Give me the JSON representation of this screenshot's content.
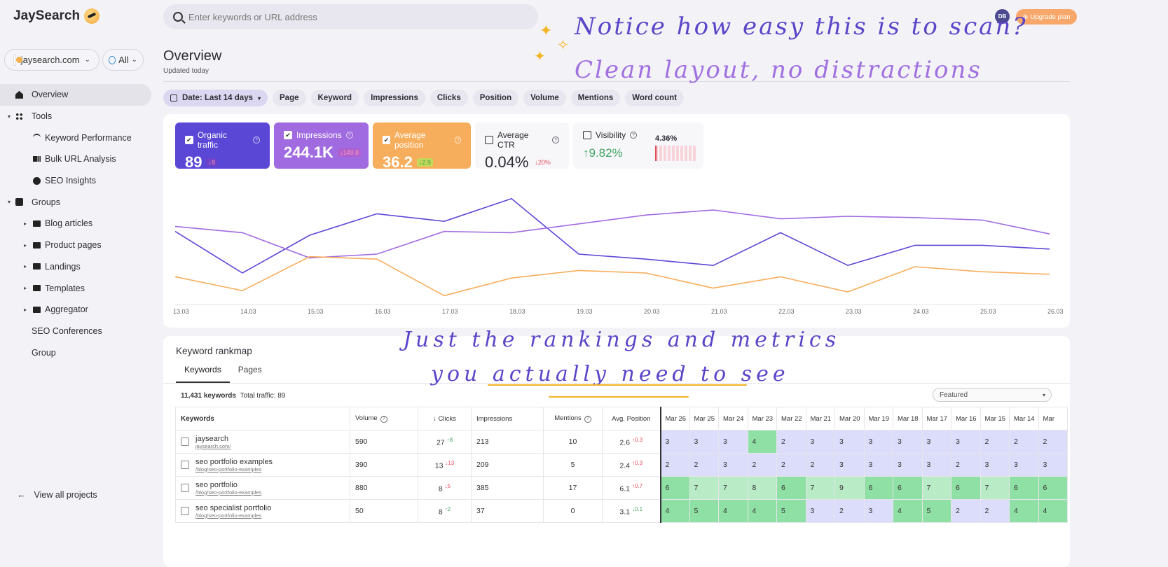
{
  "app": {
    "name": "JaySearch"
  },
  "sidebar": {
    "project": "jaysearch.com",
    "region": "All",
    "items": [
      {
        "label": "Overview",
        "icon": "home-icon",
        "level": 0,
        "active": true
      },
      {
        "label": "Tools",
        "icon": "grid-icon",
        "level": 0,
        "expandable": true
      },
      {
        "label": "Keyword Performance",
        "icon": "signal-icon",
        "level": 1
      },
      {
        "label": "Bulk URL Analysis",
        "icon": "bars-icon",
        "level": 1
      },
      {
        "label": "SEO Insights",
        "icon": "bulb-icon",
        "level": 1
      },
      {
        "label": "Groups",
        "icon": "chart-icon",
        "level": 0,
        "expandable": true
      },
      {
        "label": "Blog articles",
        "icon": "folder-icon",
        "level": 1,
        "expandable": true
      },
      {
        "label": "Product pages",
        "icon": "folder-icon",
        "level": 1,
        "expandable": true
      },
      {
        "label": "Landings",
        "icon": "folder-icon",
        "level": 1,
        "expandable": true
      },
      {
        "label": "Templates",
        "icon": "folder-icon",
        "level": 1,
        "expandable": true
      },
      {
        "label": "Aggregator",
        "icon": "folder-icon",
        "level": 1,
        "expandable": true
      },
      {
        "label": "SEO Conferences",
        "level": 0
      },
      {
        "label": "Group",
        "level": 0
      }
    ],
    "back_label": "View all projects"
  },
  "header": {
    "search_placeholder": "Enter keywords or URL address",
    "avatar_initials": "DB",
    "upgrade_label": "Upgrade plan"
  },
  "page": {
    "title": "Overview",
    "subtitle": "Updated today"
  },
  "filters": [
    "Date: Last 14 days",
    "Page",
    "Keyword",
    "Impressions",
    "Clicks",
    "Position",
    "Volume",
    "Mentions",
    "Word count"
  ],
  "metrics": [
    {
      "label": "Organic traffic",
      "value": "89",
      "delta": "↓8",
      "checked": true
    },
    {
      "label": "Impressions",
      "value": "244.1K",
      "delta": "↓149.8",
      "checked": true
    },
    {
      "label": "Average position",
      "value": "36.2",
      "delta": "↓2.9",
      "checked": true
    },
    {
      "label": "Average CTR",
      "value": "0.04%",
      "delta": "↓20%",
      "checked": false
    },
    {
      "label": "Visibility",
      "value": "↑9.82%",
      "side_value": "4.36%",
      "checked": false
    }
  ],
  "chart_data": {
    "type": "line",
    "x": [
      "13.03",
      "14.03",
      "15.03",
      "16.03",
      "17.03",
      "18.03",
      "19.03",
      "20.03",
      "21.03",
      "22.03",
      "23.03",
      "24.03",
      "25.03",
      "26.03"
    ],
    "series": [
      {
        "name": "Organic traffic",
        "color": "#5b47d6",
        "values": [
          58,
          25,
          55,
          72,
          66,
          84,
          40,
          36,
          31,
          57,
          31,
          47,
          47,
          44
        ]
      },
      {
        "name": "Impressions",
        "color": "#a06be0",
        "values": [
          62,
          57,
          37,
          40,
          58,
          57,
          64,
          71,
          75,
          68,
          70,
          69,
          67,
          56
        ]
      },
      {
        "name": "Average position",
        "color": "#f7ae5c",
        "values": [
          22,
          11,
          38,
          36,
          7,
          21,
          27,
          25,
          13,
          22,
          10,
          30,
          26,
          24
        ]
      }
    ],
    "grid": false
  },
  "rankmap": {
    "title": "Keyword rankmap",
    "tabs": [
      "Keywords",
      "Pages"
    ],
    "count": "11,431 keywords",
    "total": "Total traffic: 89",
    "sort": "Featured",
    "columns": [
      "Keywords",
      "Volume",
      "↓ Clicks",
      "Impressions",
      "Mentions",
      "Avg. Position"
    ],
    "dates": [
      "Mar 26",
      "Mar 25",
      "Mar 24",
      "Mar 23",
      "Mar 22",
      "Mar 21",
      "Mar 20",
      "Mar 19",
      "Mar 18",
      "Mar 17",
      "Mar 16",
      "Mar 15",
      "Mar 14",
      "Mar"
    ],
    "rows": [
      {
        "keyword": "jaysearch",
        "url": "jaysearch.com/",
        "volume": "590",
        "clicks": "27",
        "clicks_delta": "↑8",
        "clicks_dir": "up",
        "impressions": "213",
        "mentions": "10",
        "pos": "2.6",
        "pos_delta": "↑0.3",
        "pos_dir": "dn",
        "ranks": [
          "3",
          "3",
          "3",
          "4",
          "2",
          "3",
          "3",
          "3",
          "3",
          "3",
          "3",
          "2",
          "2",
          "2"
        ],
        "colors": [
          "b",
          "b",
          "b",
          "g1",
          "b",
          "b",
          "b",
          "b",
          "b",
          "b",
          "b",
          "b",
          "b",
          "b"
        ]
      },
      {
        "keyword": "seo portfolio examples",
        "url": "/blog/seo-portfolio-examples",
        "volume": "390",
        "clicks": "13",
        "clicks_delta": "↓13",
        "clicks_dir": "dn",
        "impressions": "209",
        "mentions": "5",
        "pos": "2.4",
        "pos_delta": "↑0.3",
        "pos_dir": "dn",
        "ranks": [
          "2",
          "2",
          "3",
          "2",
          "2",
          "2",
          "3",
          "3",
          "3",
          "3",
          "2",
          "3",
          "3",
          "3"
        ],
        "colors": [
          "b",
          "b",
          "b",
          "b",
          "b",
          "b",
          "b",
          "b",
          "b",
          "b",
          "b",
          "b",
          "b",
          "b"
        ]
      },
      {
        "keyword": "seo portfolio",
        "url": "/blog/seo-portfolio-examples",
        "volume": "880",
        "clicks": "8",
        "clicks_delta": "↓5",
        "clicks_dir": "dn",
        "impressions": "385",
        "mentions": "17",
        "pos": "6.1",
        "pos_delta": "↑0.7",
        "pos_dir": "dn",
        "ranks": [
          "6",
          "7",
          "7",
          "8",
          "6",
          "7",
          "9",
          "6",
          "6",
          "7",
          "6",
          "7",
          "6",
          "6"
        ],
        "colors": [
          "g1",
          "g2",
          "g2",
          "g2",
          "g1",
          "g2",
          "g2",
          "g1",
          "g1",
          "g2",
          "g1",
          "g2",
          "g1",
          "g1"
        ]
      },
      {
        "keyword": "seo specialist portfolio",
        "url": "/blog/seo-portfolio-examples",
        "volume": "50",
        "clicks": "8",
        "clicks_delta": "↑2",
        "clicks_dir": "up",
        "impressions": "37",
        "mentions": "0",
        "pos": "3.1",
        "pos_delta": "↓0.1",
        "pos_dir": "up",
        "ranks": [
          "4",
          "5",
          "4",
          "4",
          "5",
          "3",
          "2",
          "3",
          "4",
          "5",
          "2",
          "2",
          "4",
          "4"
        ],
        "colors": [
          "g1",
          "g1",
          "g1",
          "g1",
          "g1",
          "b",
          "b",
          "b",
          "g1",
          "g1",
          "b",
          "b",
          "g1",
          "g1"
        ]
      }
    ]
  },
  "annotations": {
    "top_line1": "Notice how easy this is to scan?",
    "top_line2": "Clean layout, no distractions",
    "mid_line1": "Just the rankings and metrics",
    "mid_line2": "you actually need to see"
  }
}
